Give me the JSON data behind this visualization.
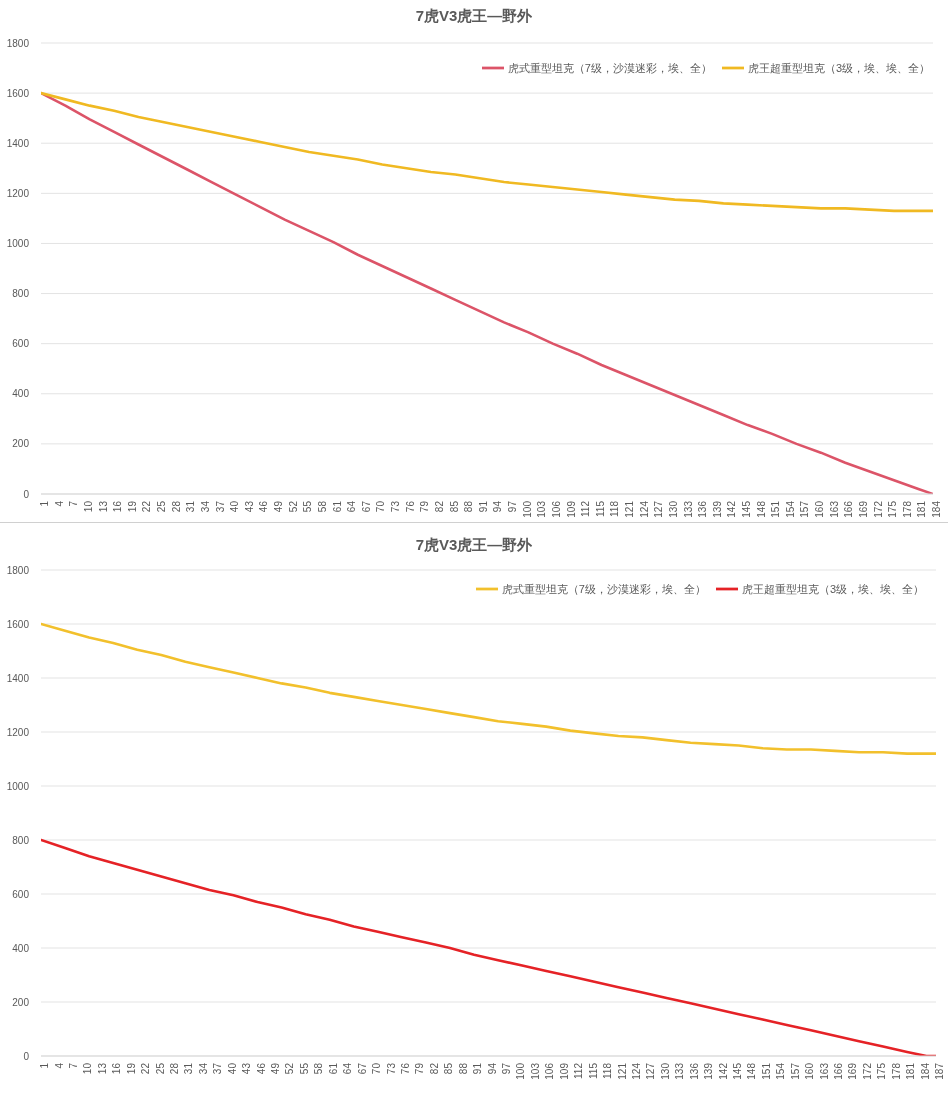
{
  "chart_data": [
    {
      "type": "line",
      "title": "7虎V3虎王—野外",
      "xlim": [
        1,
        184
      ],
      "xticks": [
        1,
        4,
        7,
        10,
        13,
        16,
        19,
        22,
        25,
        28,
        31,
        34,
        37,
        40,
        43,
        46,
        49,
        52,
        55,
        58,
        61,
        64,
        67,
        70,
        73,
        76,
        79,
        82,
        85,
        88,
        91,
        94,
        97,
        100,
        103,
        106,
        109,
        112,
        115,
        118,
        121,
        124,
        127,
        130,
        133,
        136,
        139,
        142,
        145,
        148,
        151,
        154,
        157,
        160,
        163,
        166,
        169,
        172,
        175,
        178,
        181,
        184
      ],
      "ylim": [
        0,
        1800
      ],
      "yticks": [
        0,
        200,
        400,
        600,
        800,
        1000,
        1200,
        1400,
        1600,
        1800
      ],
      "grid": "y",
      "legend": "top right",
      "series": [
        {
          "name": "虎式重型坦克（7级，沙漠迷彩，埃、全）",
          "color": "#dc5468",
          "x": [
            1,
            6,
            11,
            16,
            21,
            26,
            31,
            36,
            41,
            46,
            51,
            56,
            61,
            66,
            71,
            76,
            81,
            86,
            91,
            96,
            101,
            106,
            111,
            116,
            121,
            126,
            131,
            136,
            141,
            146,
            151,
            156,
            161,
            166,
            171,
            176,
            181,
            184
          ],
          "values": [
            1600,
            1550,
            1495,
            1445,
            1395,
            1345,
            1295,
            1245,
            1195,
            1145,
            1095,
            1050,
            1005,
            955,
            910,
            865,
            820,
            775,
            730,
            685,
            645,
            600,
            560,
            515,
            475,
            435,
            395,
            355,
            315,
            275,
            240,
            200,
            165,
            125,
            90,
            55,
            20,
            0
          ]
        },
        {
          "name": "虎王超重型坦克（3级，埃、埃、全）",
          "color": "#f0b922",
          "x": [
            1,
            6,
            11,
            16,
            21,
            26,
            31,
            36,
            41,
            46,
            51,
            56,
            61,
            66,
            71,
            76,
            81,
            86,
            91,
            96,
            101,
            106,
            111,
            116,
            121,
            126,
            131,
            136,
            141,
            146,
            151,
            156,
            161,
            166,
            171,
            176,
            181,
            184
          ],
          "values": [
            1600,
            1575,
            1550,
            1530,
            1505,
            1485,
            1465,
            1445,
            1425,
            1405,
            1385,
            1365,
            1350,
            1335,
            1315,
            1300,
            1285,
            1275,
            1260,
            1245,
            1235,
            1225,
            1215,
            1205,
            1195,
            1185,
            1175,
            1170,
            1160,
            1155,
            1150,
            1145,
            1140,
            1140,
            1135,
            1130,
            1130,
            1130
          ]
        }
      ]
    },
    {
      "type": "line",
      "title": "7虎V3虎王—野外",
      "xlim": [
        1,
        187
      ],
      "xticks": [
        1,
        4,
        7,
        10,
        13,
        16,
        19,
        22,
        25,
        28,
        31,
        34,
        37,
        40,
        43,
        46,
        49,
        52,
        55,
        58,
        61,
        64,
        67,
        70,
        73,
        76,
        79,
        82,
        85,
        88,
        91,
        94,
        97,
        100,
        103,
        106,
        109,
        112,
        115,
        118,
        121,
        124,
        127,
        130,
        133,
        136,
        139,
        142,
        145,
        148,
        151,
        154,
        157,
        160,
        163,
        166,
        169,
        172,
        175,
        178,
        181,
        184,
        187
      ],
      "ylim": [
        0,
        1800
      ],
      "yticks": [
        0,
        200,
        400,
        600,
        800,
        1000,
        1200,
        1400,
        1600,
        1800
      ],
      "grid": "y",
      "legend": "top right",
      "series": [
        {
          "name": "虎式重型坦克（7级，沙漠迷彩，埃、全）",
          "color": "#f2c02c",
          "x": [
            1,
            6,
            11,
            16,
            21,
            26,
            31,
            36,
            41,
            46,
            51,
            56,
            61,
            66,
            71,
            76,
            81,
            86,
            91,
            96,
            101,
            106,
            111,
            116,
            121,
            126,
            131,
            136,
            141,
            146,
            151,
            156,
            161,
            166,
            171,
            176,
            181,
            186,
            187
          ],
          "values": [
            1600,
            1575,
            1550,
            1530,
            1505,
            1485,
            1460,
            1440,
            1420,
            1400,
            1380,
            1365,
            1345,
            1330,
            1315,
            1300,
            1285,
            1270,
            1255,
            1240,
            1230,
            1220,
            1205,
            1195,
            1185,
            1180,
            1170,
            1160,
            1155,
            1150,
            1140,
            1135,
            1135,
            1130,
            1125,
            1125,
            1120,
            1120,
            1120
          ]
        },
        {
          "name": "虎王超重型坦克（3级，埃、埃、全）",
          "color": "#e52226",
          "x": [
            1,
            6,
            11,
            16,
            21,
            26,
            31,
            36,
            41,
            46,
            51,
            56,
            61,
            66,
            71,
            76,
            81,
            86,
            91,
            96,
            101,
            106,
            111,
            116,
            121,
            126,
            131,
            136,
            141,
            146,
            151,
            156,
            161,
            166,
            171,
            176,
            181,
            185,
            187
          ],
          "values": [
            800,
            770,
            740,
            715,
            690,
            665,
            640,
            615,
            595,
            570,
            550,
            525,
            505,
            480,
            460,
            440,
            420,
            400,
            375,
            355,
            335,
            315,
            295,
            275,
            255,
            235,
            215,
            195,
            175,
            155,
            135,
            115,
            95,
            75,
            55,
            35,
            15,
            0,
            0
          ]
        }
      ]
    }
  ]
}
